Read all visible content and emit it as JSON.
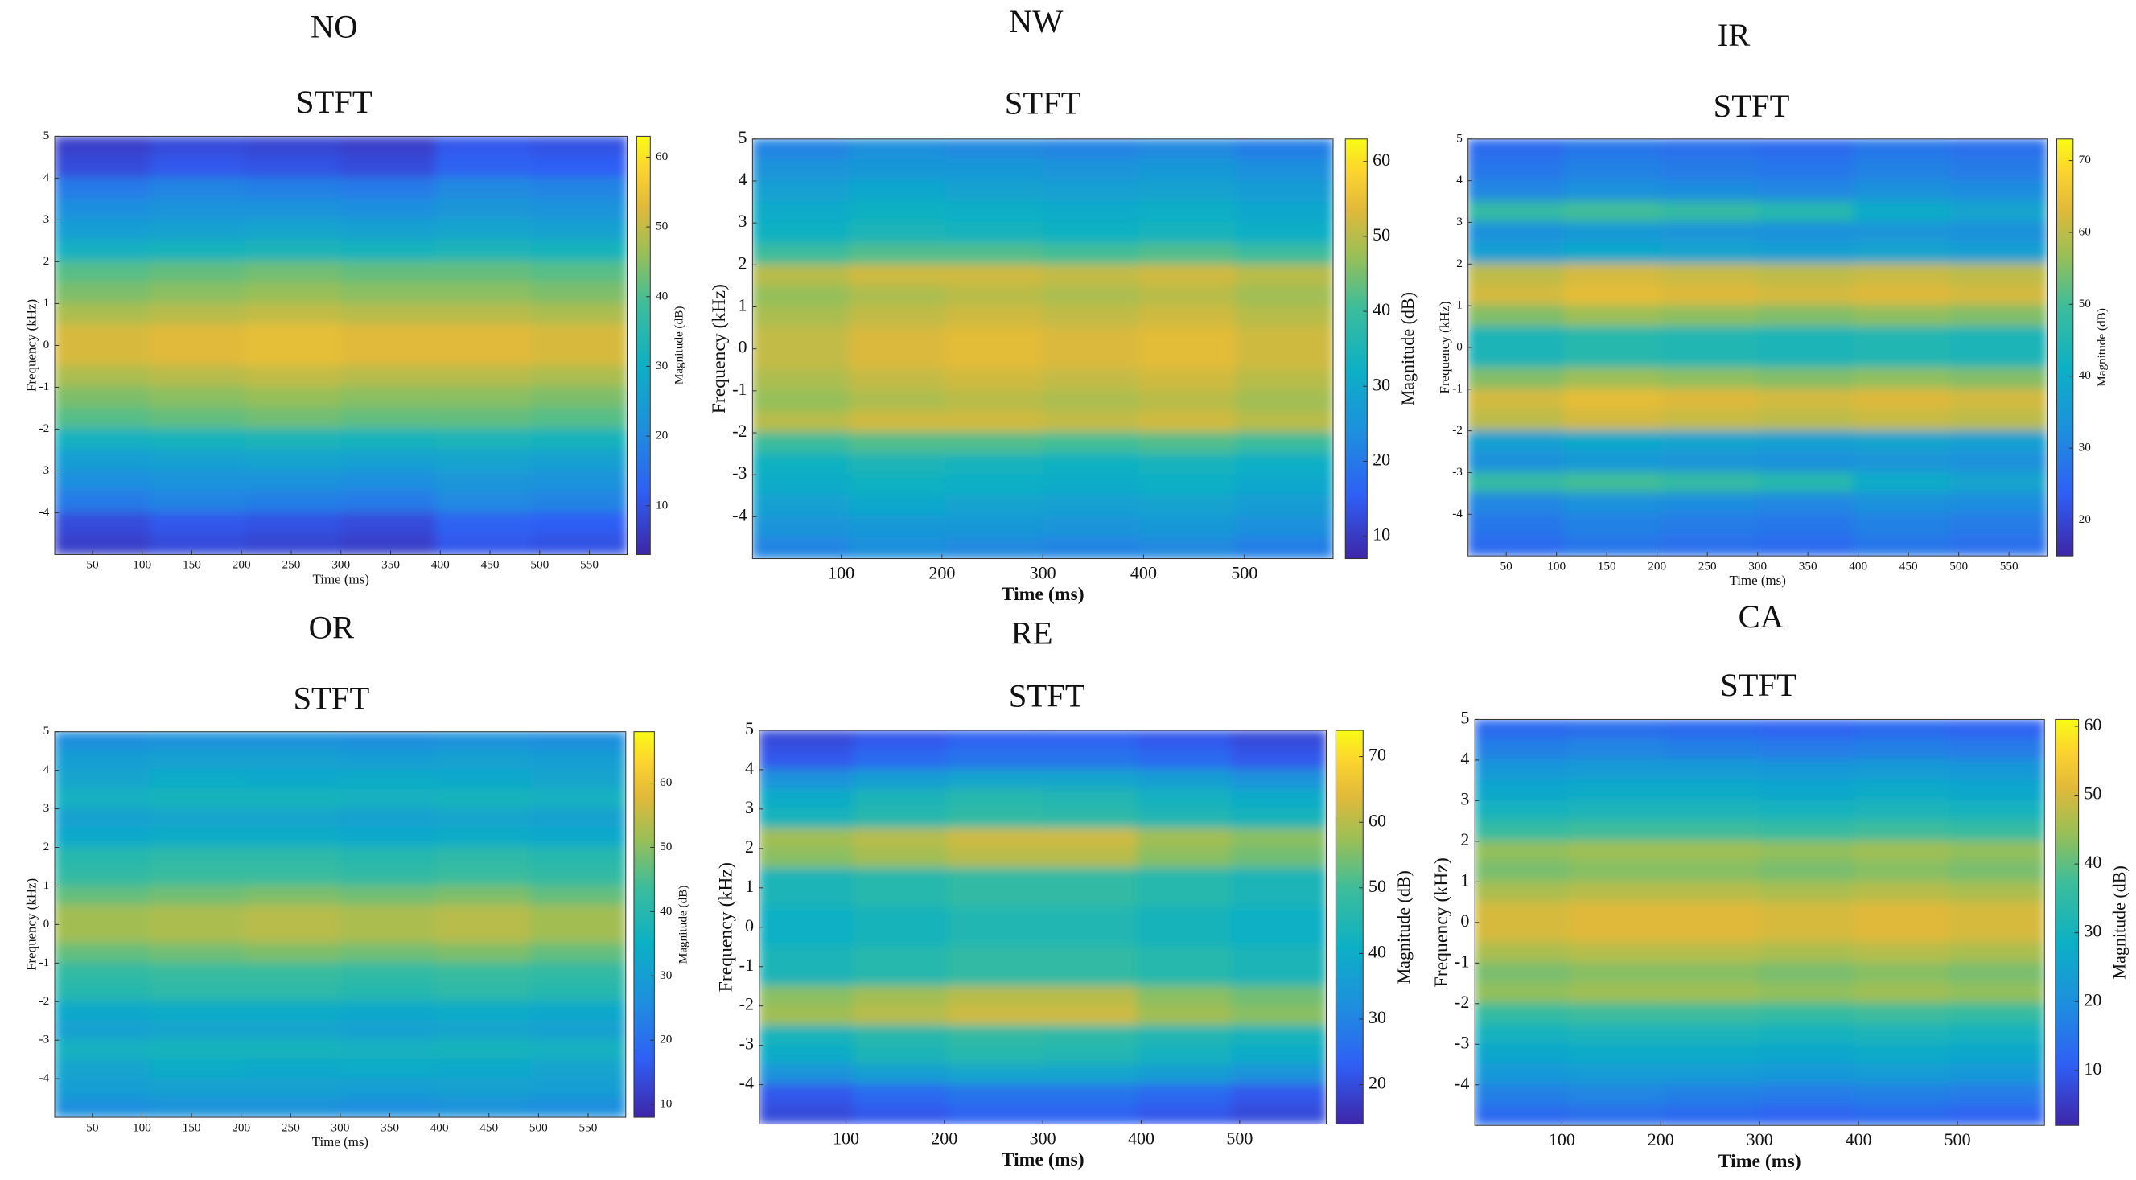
{
  "chart_data": [
    {
      "type": "heatmap",
      "title": "NO",
      "subtitle": "STFT",
      "xlabel": "Time (ms)",
      "ylabel": "Frequency (kHz)",
      "colorbar_label": "Magnitude (dB)",
      "colormap": "parula",
      "xlim": [
        12,
        588
      ],
      "ylim": [
        -5,
        5
      ],
      "xticks": [
        50,
        100,
        150,
        200,
        250,
        300,
        350,
        400,
        450,
        500,
        550
      ],
      "yticks": [
        -4,
        -3,
        -2,
        -1,
        0,
        1,
        2,
        3,
        4,
        5
      ],
      "clim": [
        3,
        63
      ],
      "cticks": [
        10,
        20,
        30,
        40,
        50,
        60
      ],
      "z": [
        [
          7,
          9,
          8,
          7,
          11,
          10
        ],
        [
          9,
          11,
          10,
          9,
          13,
          12
        ],
        [
          17,
          19,
          18,
          17,
          20,
          19
        ],
        [
          21,
          22,
          22,
          21,
          23,
          22
        ],
        [
          25,
          26,
          27,
          26,
          27,
          26
        ],
        [
          31,
          32,
          33,
          32,
          33,
          32
        ],
        [
          41,
          42,
          43,
          42,
          42,
          41
        ],
        [
          44,
          45,
          46,
          45,
          45,
          44
        ],
        [
          48,
          49,
          50,
          49,
          49,
          48
        ],
        [
          52,
          53,
          54,
          53,
          53,
          52
        ],
        [
          52,
          53,
          54,
          53,
          53,
          52
        ],
        [
          48,
          49,
          50,
          49,
          49,
          48
        ],
        [
          44,
          45,
          46,
          45,
          45,
          44
        ],
        [
          41,
          42,
          43,
          42,
          42,
          41
        ],
        [
          31,
          32,
          33,
          32,
          33,
          32
        ],
        [
          25,
          26,
          27,
          26,
          27,
          26
        ],
        [
          21,
          22,
          22,
          21,
          23,
          22
        ],
        [
          17,
          19,
          18,
          17,
          20,
          19
        ],
        [
          9,
          11,
          10,
          9,
          13,
          12
        ],
        [
          7,
          9,
          8,
          7,
          11,
          10
        ]
      ]
    },
    {
      "type": "heatmap",
      "title": "NW",
      "subtitle": "STFT",
      "xlabel": "Time (ms)",
      "ylabel": "Frequency (kHz)",
      "colorbar_label": "Magnitude (dB)",
      "colormap": "parula",
      "xlim": [
        12,
        588
      ],
      "ylim": [
        -5,
        5
      ],
      "xticks": [
        100,
        200,
        300,
        400,
        500
      ],
      "yticks": [
        -4,
        -3,
        -2,
        -1,
        0,
        1,
        2,
        3,
        4,
        5
      ],
      "clim": [
        7,
        63
      ],
      "cticks": [
        10,
        20,
        30,
        40,
        50,
        60
      ],
      "z": [
        [
          22,
          24,
          23,
          22,
          23,
          21
        ],
        [
          25,
          26,
          26,
          25,
          26,
          24
        ],
        [
          28,
          30,
          29,
          28,
          29,
          27
        ],
        [
          31,
          33,
          32,
          31,
          32,
          30
        ],
        [
          33,
          35,
          34,
          33,
          34,
          32
        ],
        [
          40,
          42,
          42,
          41,
          42,
          40
        ],
        [
          50,
          52,
          52,
          51,
          52,
          50
        ],
        [
          47,
          49,
          50,
          49,
          50,
          48
        ],
        [
          49,
          51,
          52,
          51,
          52,
          50
        ],
        [
          51,
          53,
          54,
          53,
          54,
          52
        ],
        [
          51,
          53,
          54,
          53,
          54,
          52
        ],
        [
          49,
          51,
          52,
          51,
          52,
          50
        ],
        [
          47,
          49,
          50,
          49,
          50,
          48
        ],
        [
          50,
          52,
          52,
          51,
          52,
          50
        ],
        [
          40,
          42,
          42,
          41,
          42,
          40
        ],
        [
          33,
          35,
          34,
          33,
          34,
          32
        ],
        [
          31,
          33,
          32,
          31,
          32,
          30
        ],
        [
          28,
          30,
          29,
          28,
          29,
          27
        ],
        [
          25,
          26,
          26,
          25,
          26,
          24
        ],
        [
          22,
          24,
          23,
          22,
          23,
          21
        ]
      ]
    },
    {
      "type": "heatmap",
      "title": "IR",
      "subtitle": "STFT",
      "xlabel": "Time (ms)",
      "ylabel": "Frequency (kHz)",
      "colorbar_label": "Magnitude (dB)",
      "colormap": "parula",
      "xlim": [
        12,
        588
      ],
      "ylim": [
        -5,
        5
      ],
      "xticks": [
        50,
        100,
        150,
        200,
        250,
        300,
        350,
        400,
        450,
        500,
        550
      ],
      "yticks": [
        -4,
        -3,
        -2,
        -1,
        0,
        1,
        2,
        3,
        4,
        5
      ],
      "clim": [
        15,
        73
      ],
      "cticks": [
        20,
        30,
        40,
        50,
        60,
        70
      ],
      "z": [
        [
          26,
          28,
          27,
          26,
          28,
          27
        ],
        [
          28,
          30,
          29,
          28,
          30,
          29
        ],
        [
          31,
          33,
          32,
          31,
          33,
          32
        ],
        [
          48,
          50,
          48,
          46,
          40,
          38
        ],
        [
          33,
          35,
          34,
          33,
          34,
          33
        ],
        [
          37,
          39,
          38,
          37,
          38,
          37
        ],
        [
          60,
          62,
          61,
          60,
          61,
          60
        ],
        [
          62,
          64,
          63,
          62,
          63,
          62
        ],
        [
          55,
          57,
          56,
          55,
          56,
          55
        ],
        [
          44,
          46,
          45,
          44,
          45,
          44
        ],
        [
          44,
          46,
          45,
          44,
          45,
          44
        ],
        [
          55,
          57,
          56,
          55,
          56,
          55
        ],
        [
          62,
          64,
          63,
          62,
          63,
          62
        ],
        [
          60,
          62,
          61,
          60,
          61,
          60
        ],
        [
          37,
          39,
          38,
          37,
          38,
          37
        ],
        [
          33,
          35,
          34,
          33,
          34,
          33
        ],
        [
          48,
          50,
          48,
          46,
          40,
          38
        ],
        [
          31,
          33,
          32,
          31,
          33,
          32
        ],
        [
          28,
          30,
          29,
          28,
          30,
          29
        ],
        [
          26,
          28,
          27,
          26,
          28,
          27
        ]
      ]
    },
    {
      "type": "heatmap",
      "title": "OR",
      "subtitle": "STFT",
      "xlabel": "Time (ms)",
      "ylabel": "Frequency (kHz)",
      "colorbar_label": "Magnitude (dB)",
      "colormap": "parula",
      "xlim": [
        12,
        588
      ],
      "ylim": [
        -5,
        5
      ],
      "xticks": [
        50,
        100,
        150,
        200,
        250,
        300,
        350,
        400,
        450,
        500,
        550
      ],
      "yticks": [
        -4,
        -3,
        -2,
        -1,
        0,
        1,
        2,
        3,
        4,
        5
      ],
      "clim": [
        8,
        68
      ],
      "cticks": [
        10,
        20,
        30,
        40,
        50,
        60
      ],
      "z": [
        [
          26,
          27,
          27,
          26,
          27,
          26
        ],
        [
          30,
          31,
          31,
          30,
          31,
          30
        ],
        [
          32,
          34,
          33,
          34,
          33,
          32
        ],
        [
          36,
          37,
          37,
          36,
          37,
          36
        ],
        [
          31,
          32,
          32,
          31,
          32,
          31
        ],
        [
          33,
          34,
          34,
          33,
          34,
          33
        ],
        [
          40,
          41,
          41,
          40,
          41,
          40
        ],
        [
          42,
          43,
          43,
          42,
          43,
          42
        ],
        [
          47,
          48,
          49,
          48,
          49,
          47
        ],
        [
          52,
          53,
          54,
          53,
          54,
          52
        ],
        [
          52,
          53,
          54,
          53,
          54,
          52
        ],
        [
          47,
          48,
          49,
          48,
          49,
          47
        ],
        [
          42,
          43,
          43,
          42,
          43,
          42
        ],
        [
          40,
          41,
          41,
          40,
          41,
          40
        ],
        [
          33,
          34,
          34,
          33,
          34,
          33
        ],
        [
          31,
          32,
          32,
          31,
          32,
          31
        ],
        [
          36,
          37,
          37,
          36,
          37,
          36
        ],
        [
          32,
          34,
          33,
          34,
          33,
          32
        ],
        [
          30,
          31,
          31,
          30,
          31,
          30
        ],
        [
          26,
          27,
          27,
          26,
          27,
          26
        ]
      ]
    },
    {
      "type": "heatmap",
      "title": "RE",
      "subtitle": "STFT",
      "xlabel": "Time (ms)",
      "ylabel": "Frequency (kHz)",
      "colorbar_label": "Magnitude (dB)",
      "colormap": "parula",
      "xlim": [
        12,
        588
      ],
      "ylim": [
        -5,
        5
      ],
      "xticks": [
        100,
        200,
        300,
        400,
        500
      ],
      "yticks": [
        -4,
        -3,
        -2,
        -1,
        0,
        1,
        2,
        3,
        4,
        5
      ],
      "clim": [
        14,
        74
      ],
      "cticks": [
        20,
        30,
        40,
        50,
        60,
        70
      ],
      "z": [
        [
          20,
          22,
          24,
          24,
          22,
          20
        ],
        [
          22,
          25,
          27,
          27,
          25,
          22
        ],
        [
          33,
          36,
          38,
          38,
          36,
          33
        ],
        [
          40,
          44,
          46,
          45,
          42,
          40
        ],
        [
          43,
          46,
          48,
          47,
          45,
          43
        ],
        [
          58,
          60,
          62,
          62,
          58,
          56
        ],
        [
          56,
          58,
          60,
          60,
          56,
          54
        ],
        [
          44,
          46,
          48,
          48,
          46,
          44
        ],
        [
          44,
          46,
          48,
          48,
          46,
          44
        ],
        [
          41,
          43,
          45,
          45,
          43,
          41
        ],
        [
          41,
          43,
          45,
          45,
          43,
          41
        ],
        [
          44,
          46,
          48,
          48,
          46,
          44
        ],
        [
          44,
          46,
          48,
          48,
          46,
          44
        ],
        [
          56,
          58,
          60,
          60,
          56,
          54
        ],
        [
          58,
          60,
          62,
          62,
          58,
          56
        ],
        [
          43,
          46,
          48,
          47,
          45,
          43
        ],
        [
          40,
          44,
          46,
          45,
          42,
          40
        ],
        [
          33,
          36,
          38,
          38,
          36,
          33
        ],
        [
          22,
          25,
          27,
          27,
          25,
          22
        ],
        [
          20,
          22,
          24,
          24,
          22,
          20
        ]
      ]
    },
    {
      "type": "heatmap",
      "title": "CA",
      "subtitle": "STFT",
      "xlabel": "Time (ms)",
      "ylabel": "Frequency (kHz)",
      "colorbar_label": "Magnitude (dB)",
      "colormap": "parula",
      "xlim": [
        12,
        588
      ],
      "ylim": [
        -5,
        5
      ],
      "xticks": [
        100,
        200,
        300,
        400,
        500
      ],
      "yticks": [
        -4,
        -3,
        -2,
        -1,
        0,
        1,
        2,
        3,
        4,
        5
      ],
      "clim": [
        2,
        61
      ],
      "cticks": [
        10,
        20,
        30,
        40,
        50,
        60
      ],
      "z": [
        [
          13,
          14,
          13,
          12,
          13,
          12
        ],
        [
          17,
          18,
          17,
          16,
          17,
          16
        ],
        [
          22,
          23,
          23,
          22,
          23,
          22
        ],
        [
          26,
          27,
          27,
          26,
          27,
          26
        ],
        [
          30,
          31,
          31,
          30,
          31,
          30
        ],
        [
          36,
          37,
          37,
          36,
          37,
          36
        ],
        [
          44,
          45,
          45,
          44,
          45,
          44
        ],
        [
          42,
          43,
          43,
          42,
          43,
          42
        ],
        [
          46,
          47,
          47,
          46,
          47,
          46
        ],
        [
          50,
          51,
          51,
          50,
          51,
          50
        ],
        [
          50,
          51,
          51,
          50,
          51,
          50
        ],
        [
          46,
          47,
          47,
          46,
          47,
          46
        ],
        [
          42,
          43,
          43,
          42,
          43,
          42
        ],
        [
          44,
          45,
          45,
          44,
          45,
          44
        ],
        [
          36,
          37,
          37,
          36,
          37,
          36
        ],
        [
          30,
          31,
          31,
          30,
          31,
          30
        ],
        [
          26,
          27,
          27,
          26,
          27,
          26
        ],
        [
          22,
          23,
          23,
          22,
          23,
          22
        ],
        [
          17,
          18,
          17,
          16,
          17,
          16
        ],
        [
          13,
          14,
          13,
          12,
          13,
          12
        ]
      ]
    }
  ]
}
